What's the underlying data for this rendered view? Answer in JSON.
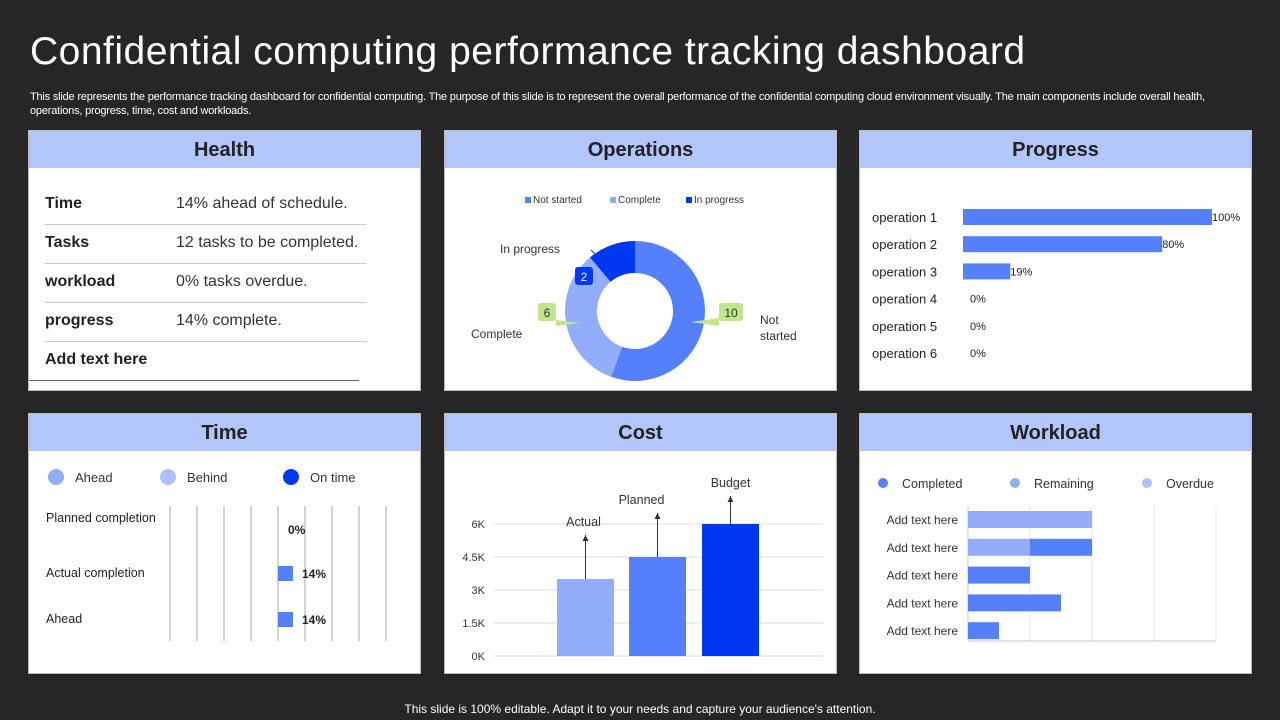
{
  "title": "Confidential computing performance tracking dashboard",
  "description": "This slide represents the performance tracking dashboard for confidential computing. The purpose of this slide is to represent the overall performance of the confidential computing cloud environment visually. The main components include overall health, operations, progress, time, cost and workloads.",
  "footer": "This slide is 100% editable. Adapt it to your needs and capture your audience's attention.",
  "colors": {
    "header": "#b3c6fc",
    "dark_blue": "#0037f0",
    "mid_blue": "#5580fb",
    "light_blue": "#94adfb",
    "callout_green": "#c0e58a"
  },
  "health": {
    "title": "Health",
    "rows": [
      {
        "label": "Time",
        "value": "14% ahead of schedule."
      },
      {
        "label": "Tasks",
        "value": "12 tasks to be completed."
      },
      {
        "label": "workload",
        "value": "0% tasks overdue."
      },
      {
        "label": "progress",
        "value": "14% complete."
      },
      {
        "label": "Add text here",
        "value": ""
      }
    ]
  },
  "operations": {
    "title": "Operations",
    "chart_data": {
      "type": "pie",
      "donut": true,
      "series": [
        {
          "name": "Not started",
          "value": 10,
          "color": "#5580fb",
          "label": "Not started"
        },
        {
          "name": "Complete",
          "value": 6,
          "color": "#94adfb",
          "label": "Complete"
        },
        {
          "name": "In progress",
          "value": 2,
          "color": "#0037f0",
          "label": "In progress"
        }
      ],
      "legend": "top"
    }
  },
  "progress": {
    "title": "Progress",
    "chart_data": {
      "type": "bar",
      "orientation": "horizontal",
      "categories": [
        "operation 1",
        "operation 2",
        "operation 3",
        "operation 4",
        "operation 5",
        "operation 6"
      ],
      "values": [
        100,
        80,
        19,
        0,
        0,
        0
      ],
      "labels": [
        "100%",
        "80%",
        "19%",
        "0%",
        "0%",
        "0%"
      ],
      "xlim": [
        0,
        100
      ]
    }
  },
  "time": {
    "title": "Time",
    "legend": [
      {
        "name": "Ahead",
        "color": "#94adfb"
      },
      {
        "name": "Behind",
        "color": "#adc0fc"
      },
      {
        "name": "On time",
        "color": "#0037f0"
      }
    ],
    "chart_data": {
      "type": "bar",
      "orientation": "horizontal",
      "categories": [
        "Planned completion",
        "Actual completion",
        "Ahead"
      ],
      "values": [
        0,
        14,
        14
      ],
      "labels": [
        "0%",
        "14%",
        "14%"
      ],
      "grid": true
    }
  },
  "cost": {
    "title": "Cost",
    "chart_data": {
      "type": "bar",
      "categories": [
        "Actual",
        "Planned",
        "Budget"
      ],
      "values": [
        3500,
        4500,
        6000
      ],
      "colors": [
        "#94adfb",
        "#5580fb",
        "#0037f0"
      ],
      "yticks": [
        "0K",
        "1.5K",
        "3K",
        "4.5K",
        "6K"
      ],
      "ylim": [
        0,
        6000
      ],
      "grid": true
    }
  },
  "workload": {
    "title": "Workload",
    "chart_data": {
      "type": "bar",
      "orientation": "horizontal",
      "stacked": true,
      "categories": [
        "Add text here",
        "Add text here",
        "Add text here",
        "Add text here",
        "Add text here"
      ],
      "series": [
        {
          "name": "Completed",
          "color": "#5580fb",
          "values": [
            0,
            1,
            1,
            1.5,
            0.5
          ]
        },
        {
          "name": "Remaining",
          "color": "#94adfb",
          "values": [
            2,
            1,
            0,
            0,
            0
          ]
        },
        {
          "name": "Overdue",
          "color": "#adc0fc",
          "values": [
            0,
            0,
            0,
            0,
            0
          ]
        }
      ],
      "xlim": [
        0,
        4
      ],
      "grid": true
    }
  }
}
